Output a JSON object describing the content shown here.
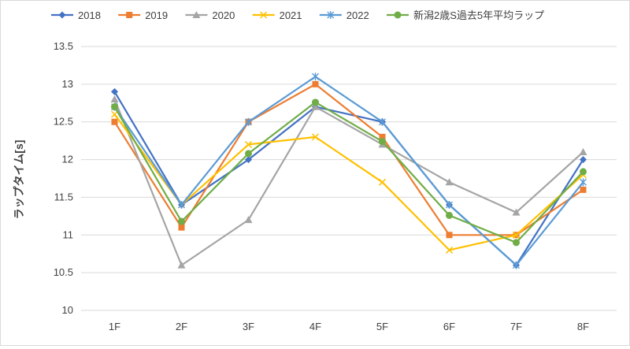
{
  "chart_data": {
    "type": "line",
    "title": "",
    "xlabel": "",
    "ylabel": "ラップタイム[s]",
    "categories": [
      "1F",
      "2F",
      "3F",
      "4F",
      "5F",
      "6F",
      "7F",
      "8F"
    ],
    "ylim": [
      10,
      13.5
    ],
    "yticks": [
      "10",
      "10.5",
      "11",
      "11.5",
      "12",
      "12.5",
      "13",
      "13.5"
    ],
    "grid": "horizontal",
    "legend_position": "top",
    "series": [
      {
        "name": "2018",
        "color": "#4472C4",
        "marker": "diamond",
        "values": [
          12.9,
          11.4,
          12.0,
          12.7,
          12.5,
          11.4,
          10.6,
          12.0
        ]
      },
      {
        "name": "2019",
        "color": "#ED7D31",
        "marker": "square",
        "values": [
          12.5,
          11.1,
          12.5,
          13.0,
          12.3,
          11.0,
          11.0,
          11.6
        ]
      },
      {
        "name": "2020",
        "color": "#A5A5A5",
        "marker": "triangle",
        "values": [
          12.8,
          10.6,
          11.2,
          12.7,
          12.2,
          11.7,
          11.3,
          12.1
        ]
      },
      {
        "name": "2021",
        "color": "#FFC000",
        "marker": "x",
        "values": [
          12.6,
          11.4,
          12.2,
          12.3,
          11.7,
          10.8,
          11.0,
          11.8
        ]
      },
      {
        "name": "2022",
        "color": "#5B9BD5",
        "marker": "star",
        "values": [
          12.7,
          11.4,
          12.5,
          13.1,
          12.5,
          11.4,
          10.6,
          11.7
        ]
      },
      {
        "name": "新潟2歳S過去5年平均ラップ",
        "color": "#70AD47",
        "marker": "circle",
        "values": [
          12.7,
          11.18,
          12.08,
          12.76,
          12.24,
          11.26,
          10.9,
          11.84
        ]
      }
    ]
  }
}
